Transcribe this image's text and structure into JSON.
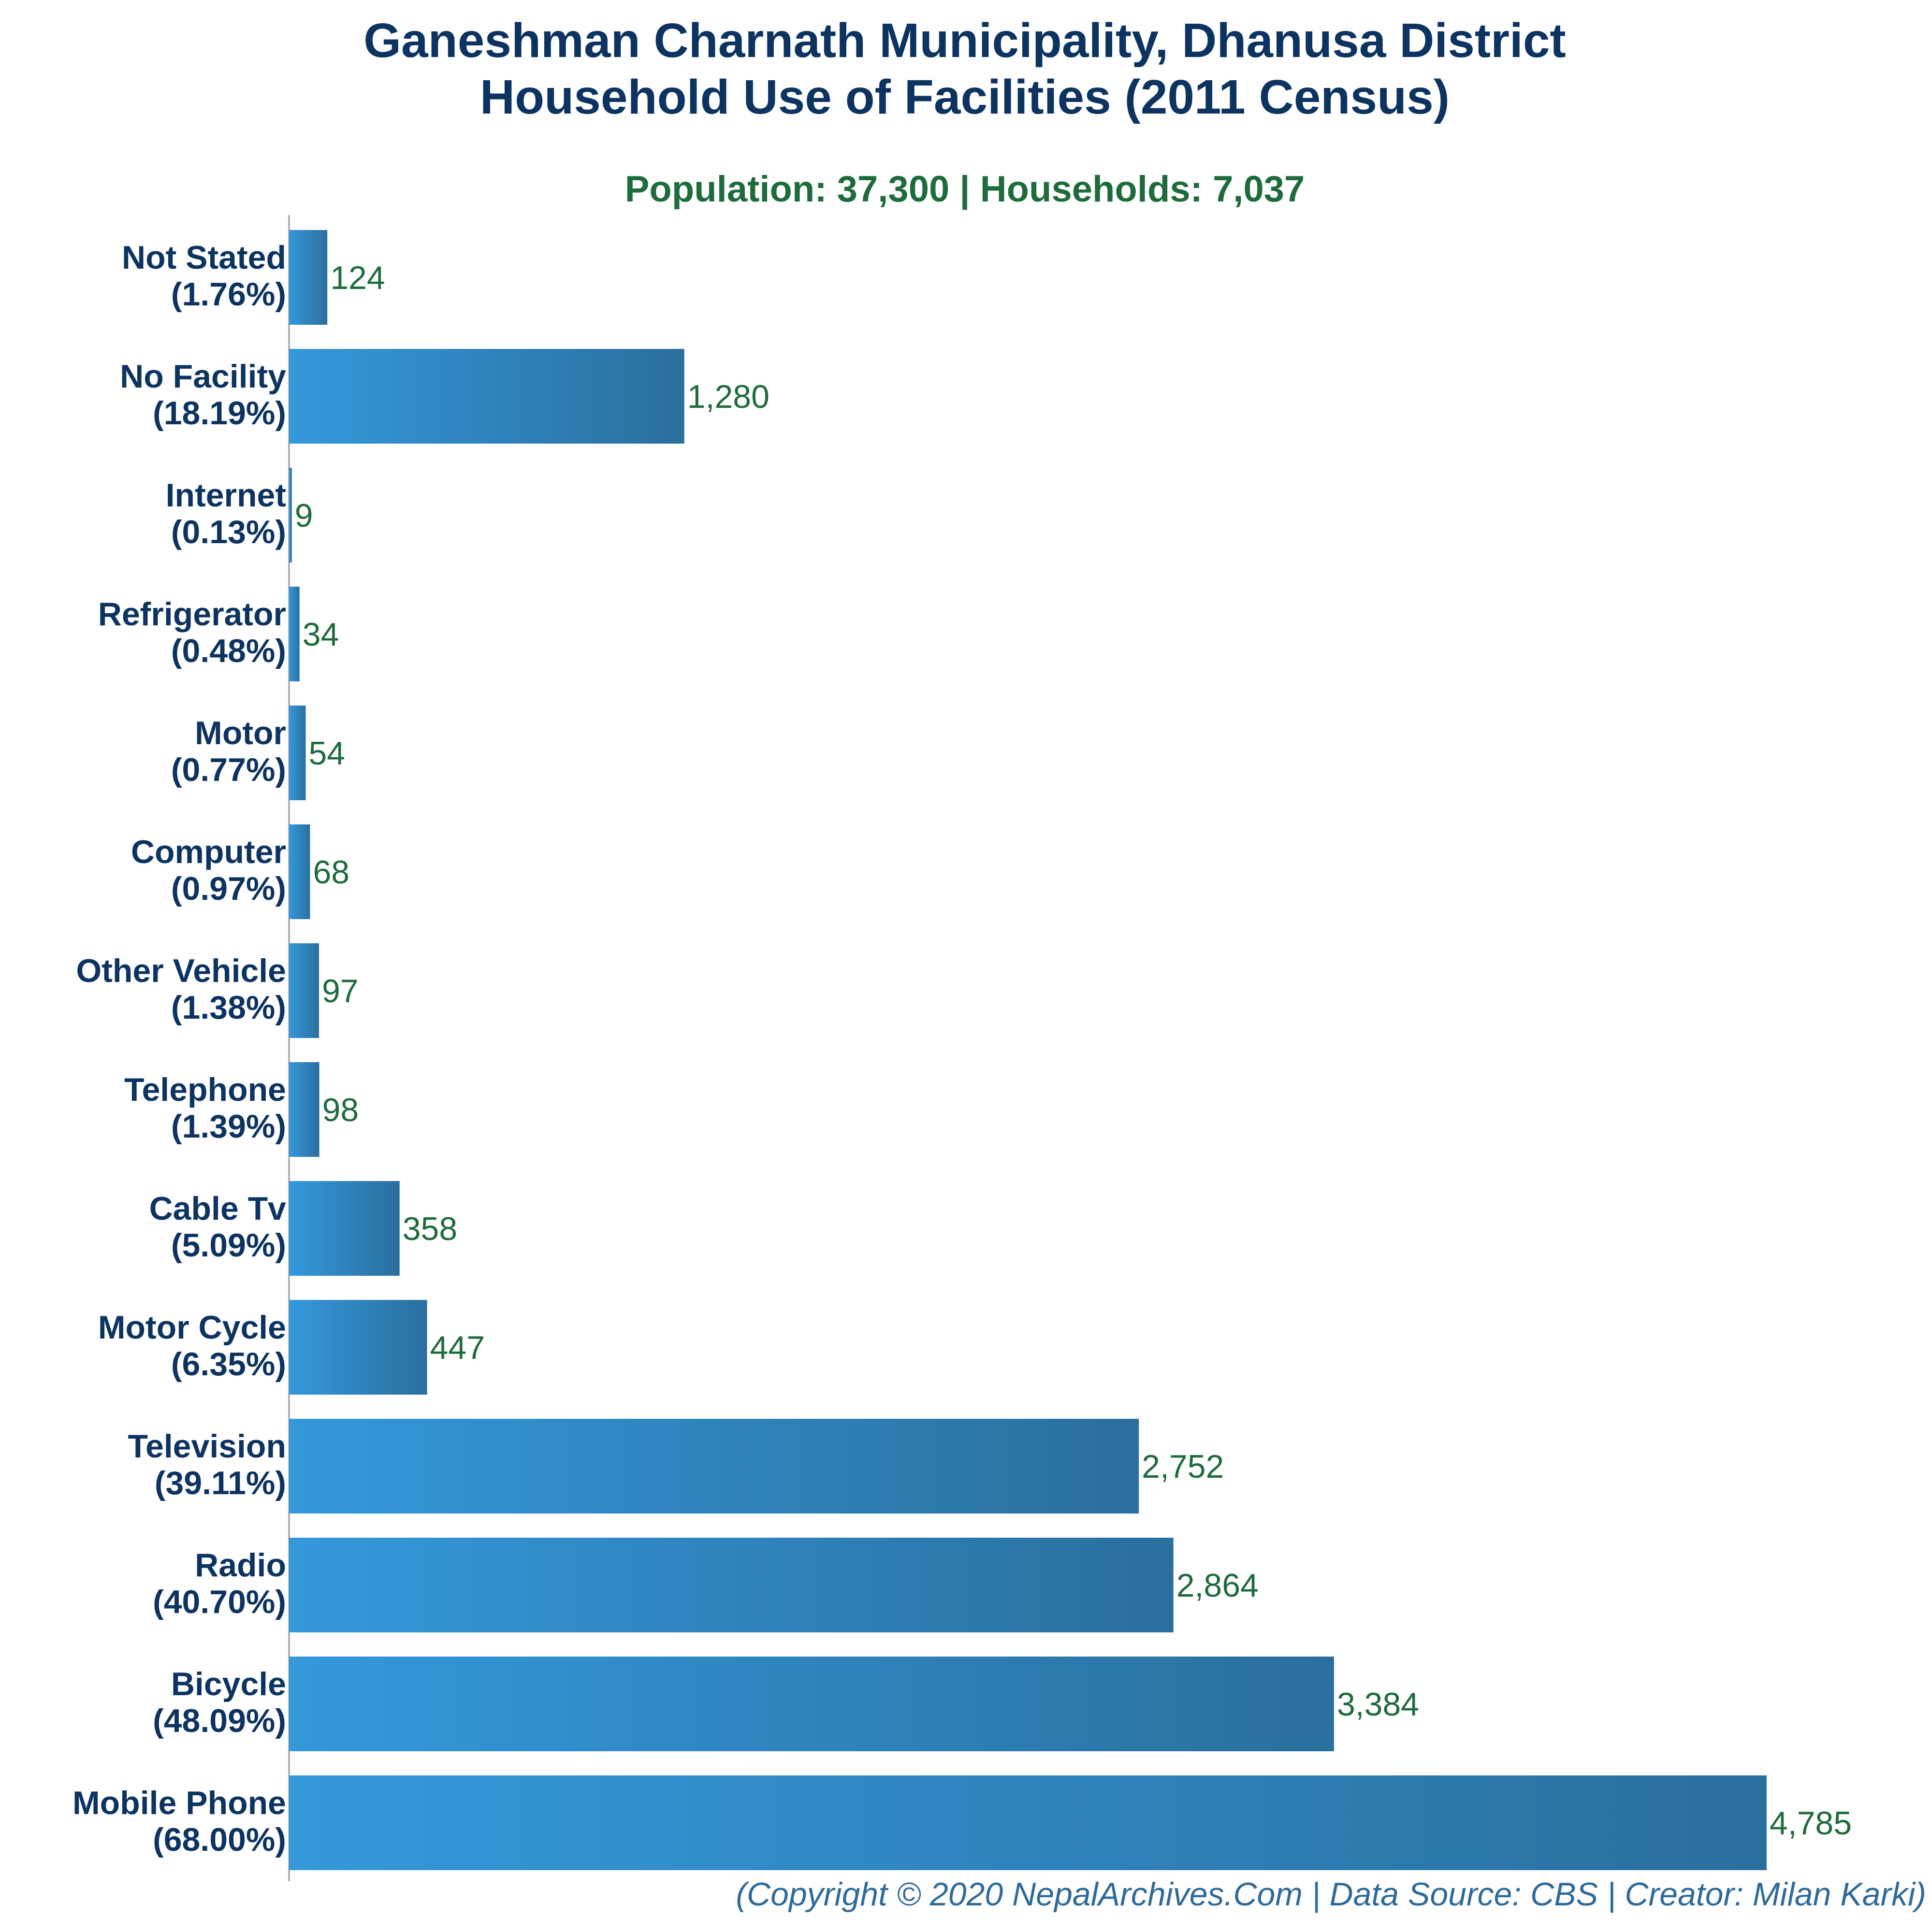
{
  "chart_data": {
    "type": "bar",
    "orientation": "horizontal",
    "title_lines": [
      "Ganeshman Charnath Municipality, Dhanusa District",
      "Household Use of Facilities (2011 Census)"
    ],
    "subtitle": "Population: 37,300 | Households: 7,037",
    "footer": "(Copyright © 2020 NepalArchives.Com | Data Source: CBS | Creator: Milan Karki)",
    "grid": false,
    "xlim": [
      0,
      4785
    ],
    "categories": [
      {
        "name": "Not Stated",
        "pct": "(1.76%)",
        "value": 124,
        "value_label": "124"
      },
      {
        "name": "No Facility",
        "pct": "(18.19%)",
        "value": 1280,
        "value_label": "1,280"
      },
      {
        "name": "Internet",
        "pct": "(0.13%)",
        "value": 9,
        "value_label": "9"
      },
      {
        "name": "Refrigerator",
        "pct": "(0.48%)",
        "value": 34,
        "value_label": "34"
      },
      {
        "name": "Motor",
        "pct": "(0.77%)",
        "value": 54,
        "value_label": "54"
      },
      {
        "name": "Computer",
        "pct": "(0.97%)",
        "value": 68,
        "value_label": "68"
      },
      {
        "name": "Other Vehicle",
        "pct": "(1.38%)",
        "value": 97,
        "value_label": "97"
      },
      {
        "name": "Telephone",
        "pct": "(1.39%)",
        "value": 98,
        "value_label": "98"
      },
      {
        "name": "Cable Tv",
        "pct": "(5.09%)",
        "value": 358,
        "value_label": "358"
      },
      {
        "name": "Motor Cycle",
        "pct": "(6.35%)",
        "value": 447,
        "value_label": "447"
      },
      {
        "name": "Television",
        "pct": "(39.11%)",
        "value": 2752,
        "value_label": "2,752"
      },
      {
        "name": "Radio",
        "pct": "(40.70%)",
        "value": 2864,
        "value_label": "2,864"
      },
      {
        "name": "Bicycle",
        "pct": "(48.09%)",
        "value": 3384,
        "value_label": "3,384"
      },
      {
        "name": "Mobile Phone",
        "pct": "(68.00%)",
        "value": 4785,
        "value_label": "4,785"
      }
    ],
    "colors": {
      "title": "#0d3461",
      "subtitle": "#1e6b3c",
      "category_label": "#0d3461",
      "value_label": "#1e6b3c",
      "bar_start": "#3498db",
      "bar_end": "#2a6f9e",
      "axis": "#9a9a9a",
      "footer": "#2f6b9a"
    }
  }
}
